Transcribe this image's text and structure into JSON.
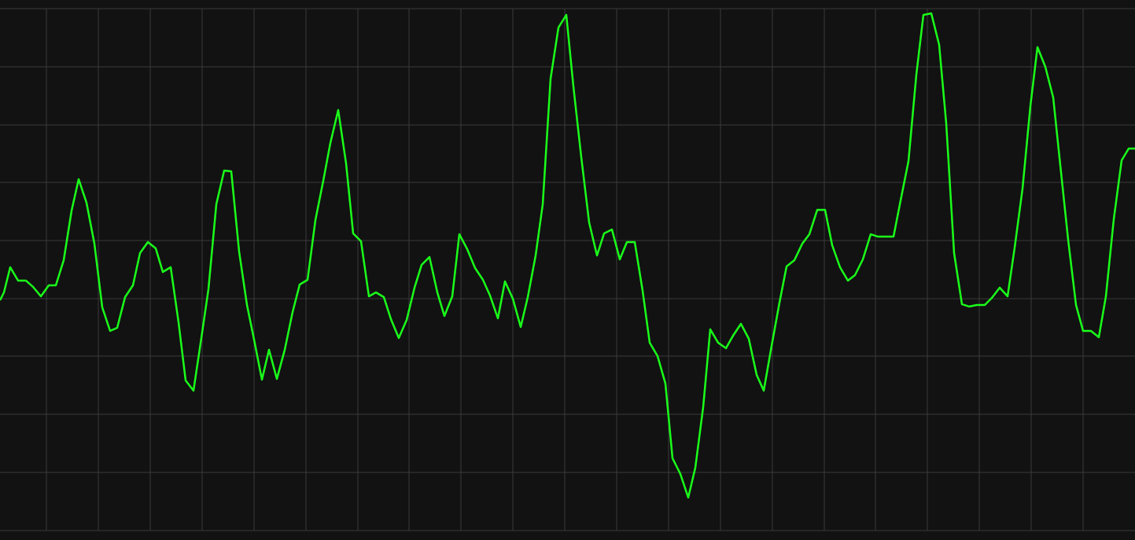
{
  "chart_data": {
    "type": "line",
    "x": [
      0,
      0.5,
      1.3,
      2.3,
      3.3,
      4.2,
      5.2,
      6.2,
      7.1,
      8.1,
      9.1,
      10.0,
      11.0,
      12.0,
      13.0,
      14.0,
      14.9,
      15.9,
      16.9,
      17.8,
      18.8,
      19.8,
      20.7,
      21.7,
      22.7,
      23.6,
      24.6,
      25.6,
      26.5,
      27.5,
      28.5,
      29.4,
      30.4,
      31.4,
      32.3,
      33.3,
      34.2,
      35.2,
      36.2,
      37.2,
      38.1,
      39.1,
      40.1,
      41.1,
      42.0,
      43.0,
      44.0,
      44.9,
      45.9,
      46.9,
      47.8,
      48.8,
      49.7,
      50.7,
      51.7,
      52.7,
      53.6,
      54.6,
      55.6,
      56.5,
      57.5,
      58.4,
      59.4,
      60.4,
      61.4,
      62.3,
      63.3,
      64.2,
      65.2,
      66.2,
      67.1,
      68.1,
      69.0,
      70.0,
      71.0,
      72.0,
      72.9,
      73.9,
      74.9,
      75.9,
      76.8,
      77.8,
      78.8,
      79.7,
      80.7,
      81.7,
      82.6,
      83.6,
      84.6,
      85.5,
      86.5,
      87.5,
      88.4,
      89.4,
      90.3,
      91.3,
      92.3,
      93.2,
      94.2,
      95.2,
      96.2,
      97.1,
      98.1,
      99.1,
      100.0,
      101.0,
      102.0,
      102.9,
      103.9,
      104.9,
      105.8,
      106.8,
      107.8,
      108.7,
      109.7,
      110.7,
      111.6,
      112.6,
      113.6,
      114.5,
      115.5,
      116.5,
      117.4,
      118.4,
      119.4,
      120.3,
      121.3,
      122.3,
      123.2,
      124.2,
      125.2,
      126.1,
      127.1,
      128.1,
      129.0,
      130.0,
      131.0,
      131.9,
      132.9,
      133.9,
      134.8,
      135.8,
      136.8,
      137.7,
      138.7,
      139.7,
      140.6,
      141.6,
      142.6,
      143.5,
      144.3
    ],
    "series": [
      {
        "color": "#1aff1a",
        "values": [
          29.3,
          30.3,
          33.5,
          31.8,
          31.8,
          31.0,
          29.8,
          31.2,
          31.2,
          34.4,
          40.7,
          44.7,
          41.7,
          36.5,
          28.4,
          25.4,
          25.8,
          29.7,
          31.2,
          35.3,
          36.7,
          35.9,
          32.9,
          33.5,
          26.5,
          19.1,
          17.8,
          24.5,
          30.7,
          41.5,
          45.8,
          45.7,
          35.5,
          28.7,
          24.3,
          19.2,
          23.0,
          19.3,
          23.0,
          27.8,
          31.3,
          31.9,
          39.5,
          44.5,
          49.3,
          53.5,
          46.7,
          37.8,
          36.8,
          29.8,
          30.3,
          29.7,
          26.9,
          24.5,
          26.8,
          30.9,
          33.8,
          34.8,
          30.3,
          27.3,
          29.8,
          37.7,
          35.8,
          33.4,
          31.9,
          29.9,
          27.0,
          31.7,
          29.5,
          25.9,
          29.7,
          35.0,
          41.5,
          57.5,
          64.0,
          65.6,
          56.5,
          47.5,
          39.2,
          35.0,
          37.8,
          38.3,
          34.5,
          36.7,
          36.7,
          30.5,
          23.9,
          22.2,
          18.7,
          9.2,
          7.2,
          4.2,
          8.0,
          15.7,
          25.6,
          23.9,
          23.2,
          24.8,
          26.3,
          24.4,
          19.8,
          17.8,
          23.5,
          29.0,
          33.6,
          34.4,
          36.5,
          37.7,
          40.8,
          40.8,
          36.3,
          33.5,
          31.8,
          32.5,
          34.5,
          37.7,
          37.4,
          37.4,
          37.4,
          42.0,
          47.0,
          58.0,
          65.6,
          65.8,
          61.8,
          51.8,
          35.3,
          28.8,
          28.5,
          28.7,
          28.7,
          29.6,
          30.9,
          29.8,
          36.0,
          43.5,
          54.0,
          61.5,
          59.0,
          55.1,
          46.5,
          37.0,
          28.7,
          25.4,
          25.4,
          24.6,
          29.8,
          39.6,
          47.1,
          48.6,
          48.6
        ]
      }
    ],
    "xlim": [
      0,
      144.3
    ],
    "xticks": [
      5.9,
      12.5,
      19.1,
      25.7,
      32.3,
      38.9,
      45.5,
      52.0,
      58.6,
      65.2,
      71.8,
      78.4,
      85.0,
      91.6,
      98.2,
      104.8,
      111.3,
      117.9,
      124.5,
      131.1,
      137.7
    ],
    "ylim": [
      -1.2,
      67.5
    ],
    "yticks": [
      0,
      7.4,
      14.8,
      22.2,
      29.5,
      36.9,
      44.3,
      51.6,
      59.0,
      66.4
    ],
    "grid": true,
    "grid_color": "#3a3a3a",
    "background": "#121212"
  }
}
